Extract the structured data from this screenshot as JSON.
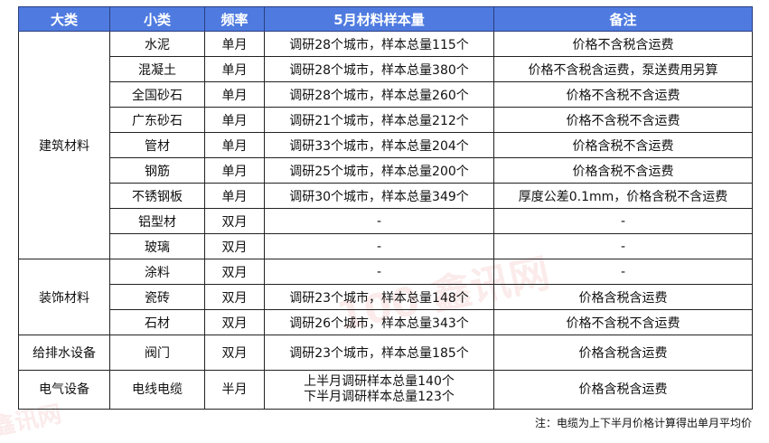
{
  "headers": [
    "大类",
    "小类",
    "频率",
    "5月材料样本量",
    "备注"
  ],
  "groups": [
    {
      "category": "建筑材料",
      "rows": [
        {
          "sub": "水泥",
          "freq": "单月",
          "sample": "调研28个城市，样本总量115个",
          "note": "价格不含税含运费"
        },
        {
          "sub": "混凝土",
          "freq": "单月",
          "sample": "调研28个城市，样本总量380个",
          "note": "价格不含税含运费，泵送费用另算"
        },
        {
          "sub": "全国砂石",
          "freq": "单月",
          "sample": "调研28个城市，样本总量260个",
          "note": "价格不含税不含运费"
        },
        {
          "sub": "广东砂石",
          "freq": "单月",
          "sample": "调研21个城市，样本总量212个",
          "note": "价格不含税不含运费"
        },
        {
          "sub": "管材",
          "freq": "单月",
          "sample": "调研33个城市，样本总量204个",
          "note": "价格含税不含运费"
        },
        {
          "sub": "钢筋",
          "freq": "单月",
          "sample": "调研25个城市，样本总量200个",
          "note": "价格含税不含运费"
        },
        {
          "sub": "不锈钢板",
          "freq": "单月",
          "sample": "调研30个城市，样本总量349个",
          "note": "厚度公差0.1mm，价格含税不含运费"
        },
        {
          "sub": "铝型材",
          "freq": "双月",
          "sample": "-",
          "note": "-"
        },
        {
          "sub": "玻璃",
          "freq": "双月",
          "sample": "-",
          "note": "-"
        }
      ]
    },
    {
      "category": "装饰材料",
      "rows": [
        {
          "sub": "涂料",
          "freq": "双月",
          "sample": "-",
          "note": "-"
        },
        {
          "sub": "瓷砖",
          "freq": "双月",
          "sample": "调研23个城市，样本总量148个",
          "note": "价格含税含运费"
        },
        {
          "sub": "石材",
          "freq": "双月",
          "sample": "调研26个城市，样本总量343个",
          "note": "价格不含税不含运费"
        }
      ]
    },
    {
      "category": "给排水设备",
      "rows": [
        {
          "sub": "阀门",
          "freq": "双月",
          "sample": "调研23个城市，样本总量185个",
          "note": "价格含税含运费"
        }
      ]
    },
    {
      "category": "电气设备",
      "rows": [
        {
          "sub": "电线电缆",
          "freq": "半月",
          "sample": "上半月调研样本总量140个",
          "sample2": "下半月调研样本总量123个",
          "note": "价格含税含运费"
        }
      ]
    }
  ],
  "footnote": "注：电缆为上下半月价格计算得出单月平均价",
  "watermark": "100 鑫讯网",
  "colors": {
    "header_bg": "#4f7be0",
    "header_text": "#ffffff"
  }
}
